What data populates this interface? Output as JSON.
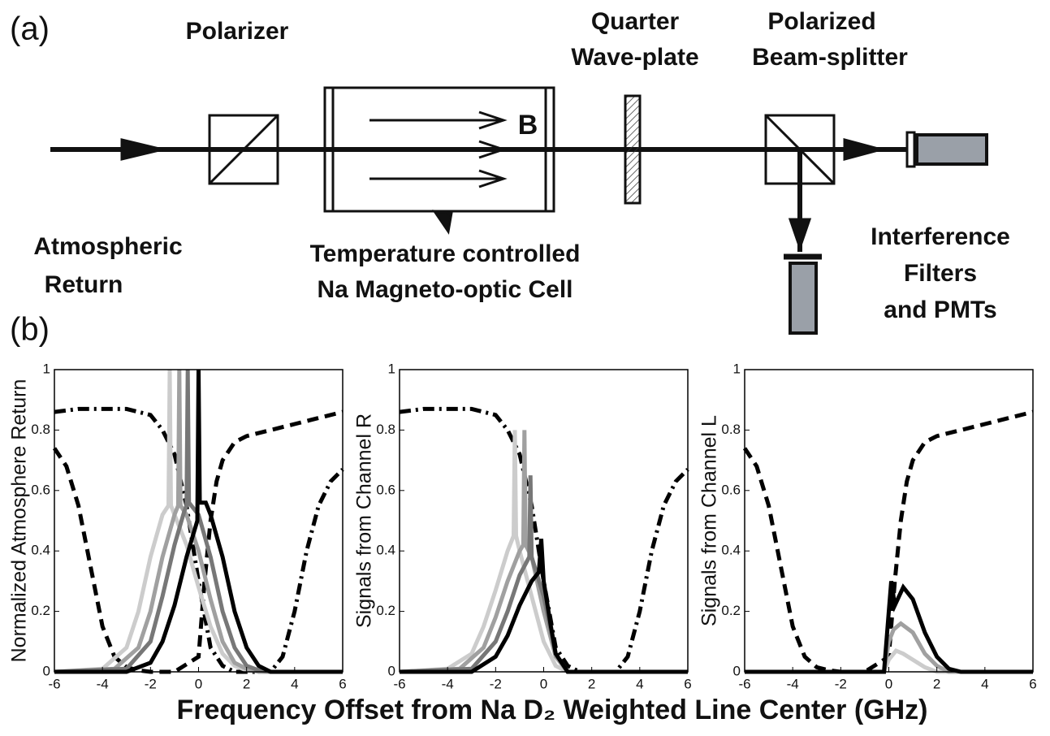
{
  "diagram": {
    "panel_a": "(a)",
    "panel_b": "(b)",
    "polarizer": "Polarizer",
    "waveplate": [
      "Quarter",
      "Wave-plate"
    ],
    "splitter": [
      "Polarized",
      "Beam-splitter"
    ],
    "field": "B",
    "input": [
      "Atmospheric",
      "Return"
    ],
    "cell": [
      "Temperature controlled",
      "Na Magneto-optic Cell"
    ],
    "detectors": [
      "Interference",
      "Filters",
      "and PMTs"
    ]
  },
  "figure": {
    "xlabel": "Frequency Offset from Na D₂ Weighted Line Center (GHz)"
  },
  "chart_data": [
    {
      "type": "line",
      "ylabel": "Normalized Atmosphere Return",
      "xlim": [
        -6,
        6
      ],
      "ylim": [
        0,
        1
      ],
      "xticks": [
        -6,
        -4,
        -2,
        0,
        2,
        4,
        6
      ],
      "yticks": [
        0,
        0.2,
        0.4,
        0.6,
        0.8,
        1
      ],
      "series": [
        {
          "color": "#000000",
          "dash": "dashed",
          "x": [
            -6,
            -5.5,
            -5,
            -4.5,
            -4,
            -3.5,
            -3,
            -2.5,
            -2,
            -1,
            0,
            0.25,
            0.5,
            0.75,
            1,
            1.5,
            2,
            3,
            4,
            5,
            6
          ],
          "values": [
            0.74,
            0.68,
            0.55,
            0.35,
            0.15,
            0.05,
            0.015,
            0.005,
            0,
            0,
            0.05,
            0.3,
            0.5,
            0.63,
            0.7,
            0.76,
            0.78,
            0.8,
            0.82,
            0.84,
            0.86
          ]
        },
        {
          "color": "#000000",
          "dash": "dashdot",
          "x": [
            -6,
            -5,
            -4,
            -3,
            -2,
            -1.5,
            -1,
            -0.5,
            0,
            0.5,
            1,
            1.5,
            3,
            3.5,
            4,
            4.5,
            5,
            5.5,
            6
          ],
          "values": [
            0.86,
            0.87,
            0.87,
            0.87,
            0.85,
            0.8,
            0.72,
            0.55,
            0.3,
            0.08,
            0.02,
            0,
            0,
            0.05,
            0.2,
            0.4,
            0.55,
            0.63,
            0.67
          ]
        },
        {
          "color": "#cccccc",
          "dash": "solid",
          "x": [
            -6,
            -4,
            -3,
            -2.5,
            -2,
            -1.5,
            -1.25,
            -1.2,
            -1.15,
            -1,
            -0.5,
            0,
            0.5,
            1,
            1.5,
            2,
            3,
            6
          ],
          "values": [
            0,
            0.01,
            0.08,
            0.2,
            0.38,
            0.52,
            0.55,
            1,
            0.55,
            0.52,
            0.42,
            0.28,
            0.15,
            0.06,
            0.02,
            0.005,
            0,
            0
          ]
        },
        {
          "color": "#a0a0a0",
          "dash": "solid",
          "x": [
            -6,
            -3.5,
            -2.5,
            -2,
            -1.5,
            -1,
            -0.85,
            -0.8,
            -0.75,
            -0.5,
            0,
            0.5,
            1,
            1.5,
            2,
            2.5,
            6
          ],
          "values": [
            0,
            0.01,
            0.08,
            0.2,
            0.38,
            0.52,
            0.55,
            1,
            0.55,
            0.52,
            0.4,
            0.24,
            0.1,
            0.03,
            0.01,
            0,
            0
          ]
        },
        {
          "color": "#777777",
          "dash": "solid",
          "x": [
            -6,
            -3,
            -2,
            -1.5,
            -1,
            -0.6,
            -0.5,
            -0.45,
            -0.4,
            0,
            0.5,
            1,
            1.5,
            2,
            2.5,
            3,
            6
          ],
          "values": [
            0,
            0.01,
            0.1,
            0.25,
            0.42,
            0.53,
            0.55,
            1,
            0.56,
            0.52,
            0.38,
            0.2,
            0.08,
            0.02,
            0.005,
            0,
            0
          ]
        },
        {
          "color": "#000000",
          "dash": "solid",
          "x": [
            -6,
            -3,
            -2,
            -1.5,
            -1,
            -0.5,
            -0.05,
            0,
            0.05,
            0.3,
            0.5,
            1,
            1.5,
            2,
            2.5,
            3,
            6
          ],
          "values": [
            0,
            0,
            0.03,
            0.1,
            0.22,
            0.38,
            0.5,
            1,
            0.56,
            0.56,
            0.52,
            0.38,
            0.2,
            0.08,
            0.02,
            0,
            0
          ]
        }
      ]
    },
    {
      "type": "line",
      "ylabel": "Signals from Channel R",
      "xlim": [
        -6,
        6
      ],
      "ylim": [
        0,
        1
      ],
      "xticks": [
        -6,
        -4,
        -2,
        0,
        2,
        4,
        6
      ],
      "yticks": [
        0,
        0.2,
        0.4,
        0.6,
        0.8,
        1
      ],
      "series": [
        {
          "color": "#000000",
          "dash": "dashdot",
          "x": [
            -6,
            -5,
            -4,
            -3,
            -2,
            -1.5,
            -1,
            -0.5,
            0,
            0.5,
            1,
            1.5,
            3,
            3.5,
            4,
            4.5,
            5,
            5.5,
            6
          ],
          "values": [
            0.86,
            0.87,
            0.87,
            0.87,
            0.85,
            0.8,
            0.72,
            0.55,
            0.3,
            0.08,
            0.02,
            0,
            0,
            0.05,
            0.2,
            0.4,
            0.55,
            0.63,
            0.67
          ]
        },
        {
          "color": "#cccccc",
          "dash": "solid",
          "x": [
            -6,
            -4,
            -3,
            -2.5,
            -2,
            -1.5,
            -1.25,
            -1.2,
            -1.15,
            -1,
            -0.5,
            0,
            0.5,
            1,
            6
          ],
          "values": [
            0,
            0.01,
            0.06,
            0.15,
            0.27,
            0.4,
            0.45,
            0.8,
            0.45,
            0.4,
            0.25,
            0.1,
            0.02,
            0,
            0
          ]
        },
        {
          "color": "#a0a0a0",
          "dash": "solid",
          "x": [
            -6,
            -3.5,
            -2.5,
            -2,
            -1.5,
            -1,
            -0.85,
            -0.8,
            -0.75,
            -0.5,
            0,
            0.5,
            1,
            6
          ],
          "values": [
            0,
            0.01,
            0.08,
            0.18,
            0.3,
            0.4,
            0.42,
            0.8,
            0.42,
            0.38,
            0.2,
            0.05,
            0,
            0
          ]
        },
        {
          "color": "#777777",
          "dash": "solid",
          "x": [
            -6,
            -3,
            -2,
            -1.5,
            -1,
            -0.6,
            -0.55,
            -0.5,
            0,
            0.5,
            1,
            6
          ],
          "values": [
            0,
            0.01,
            0.1,
            0.2,
            0.32,
            0.38,
            0.65,
            0.38,
            0.25,
            0.06,
            0,
            0
          ]
        },
        {
          "color": "#000000",
          "dash": "solid",
          "x": [
            -6,
            -3,
            -2,
            -1.5,
            -1,
            -0.5,
            -0.2,
            -0.1,
            0,
            0.3,
            0.5,
            1,
            6
          ],
          "values": [
            0,
            0,
            0.05,
            0.12,
            0.22,
            0.3,
            0.33,
            0.44,
            0.3,
            0.15,
            0.06,
            0,
            0
          ]
        }
      ]
    },
    {
      "type": "line",
      "ylabel": "Signals from Channel L",
      "xlim": [
        -6,
        6
      ],
      "ylim": [
        0,
        1
      ],
      "xticks": [
        -6,
        -4,
        -2,
        0,
        2,
        4,
        6
      ],
      "yticks": [
        0,
        0.2,
        0.4,
        0.6,
        0.8,
        1
      ],
      "series": [
        {
          "color": "#000000",
          "dash": "dashed",
          "x": [
            -6,
            -5.5,
            -5,
            -4.5,
            -4,
            -3.5,
            -3,
            -2.5,
            -2,
            -1,
            0,
            0.25,
            0.5,
            0.75,
            1,
            1.5,
            2,
            3,
            4,
            5,
            6
          ],
          "values": [
            0.74,
            0.68,
            0.55,
            0.35,
            0.15,
            0.05,
            0.015,
            0.005,
            0,
            0,
            0.05,
            0.3,
            0.5,
            0.63,
            0.7,
            0.76,
            0.78,
            0.8,
            0.82,
            0.84,
            0.86
          ]
        },
        {
          "color": "#cccccc",
          "dash": "solid",
          "x": [
            -6,
            -0.2,
            0,
            0.3,
            0.6,
            1,
            1.5,
            2,
            6
          ],
          "values": [
            0,
            0,
            0.04,
            0.07,
            0.06,
            0.04,
            0.015,
            0,
            0
          ]
        },
        {
          "color": "#a0a0a0",
          "dash": "solid",
          "x": [
            -6,
            -0.2,
            0,
            0.2,
            0.5,
            1,
            1.5,
            2,
            2.5,
            6
          ],
          "values": [
            0,
            0,
            0.1,
            0.14,
            0.16,
            0.13,
            0.06,
            0.02,
            0,
            0
          ]
        },
        {
          "color": "#000000",
          "dash": "solid",
          "x": [
            -6,
            -0.2,
            0,
            0.1,
            0.25,
            0.6,
            1,
            1.5,
            2,
            2.5,
            3,
            6
          ],
          "values": [
            0,
            0,
            0.2,
            0.3,
            0.22,
            0.28,
            0.24,
            0.13,
            0.05,
            0.01,
            0,
            0
          ]
        }
      ]
    }
  ]
}
